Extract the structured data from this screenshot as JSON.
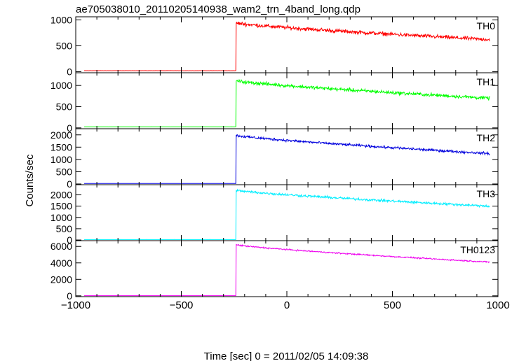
{
  "chart_data": {
    "type": "line",
    "title": "ae705038010_20110205140938_wam2_trn_4band_long.qdp",
    "xlabel": "Time [sec] 0 = 2011/02/05 14:09:38",
    "ylabel": "Counts/sec",
    "xlim": [
      -1000,
      1000
    ],
    "xticks": [
      -1000,
      -500,
      0,
      500,
      1000
    ],
    "xtick_labels": [
      "−1000",
      "−500",
      "0",
      "500",
      "1000"
    ],
    "grid": false,
    "trigger_time": -240,
    "x_start": -960,
    "x_end": 960,
    "panels": [
      {
        "name": "TH0",
        "color": "#ff0000",
        "ylim": [
          -20,
          1060
        ],
        "yticks": [
          0,
          500,
          1000
        ],
        "background": 20,
        "peak": 940,
        "end": 620,
        "noise": 55
      },
      {
        "name": "TH1",
        "color": "#00ff00",
        "ylim": [
          -20,
          1300
        ],
        "yticks": [
          0,
          500,
          1000
        ],
        "background": 25,
        "peak": 1110,
        "end": 700,
        "noise": 60
      },
      {
        "name": "TH2",
        "color": "#0000dd",
        "ylim": [
          -30,
          2250
        ],
        "yticks": [
          0,
          500,
          1000,
          1500,
          2000
        ],
        "background": 20,
        "peak": 1980,
        "end": 1240,
        "noise": 75
      },
      {
        "name": "TH3",
        "color": "#00eeff",
        "ylim": [
          -30,
          2450
        ],
        "yticks": [
          0,
          500,
          1000,
          1500,
          2000
        ],
        "background": 20,
        "peak": 2200,
        "end": 1500,
        "noise": 80
      },
      {
        "name": "TH0123",
        "color": "#ee00ee",
        "ylim": [
          -100,
          6700
        ],
        "yticks": [
          0,
          2000,
          4000,
          6000
        ],
        "background": 20,
        "peak": 6200,
        "end": 4100,
        "noise": 120
      }
    ]
  }
}
